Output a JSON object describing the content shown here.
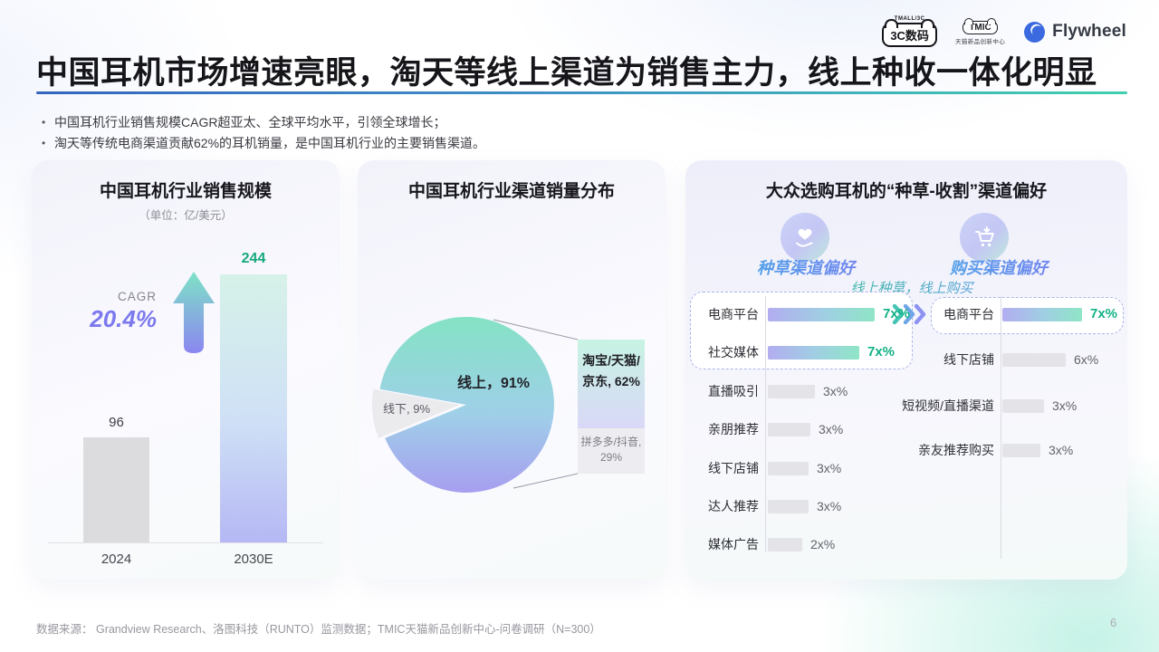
{
  "header": {
    "title": "中国耳机市场增速亮眼，淘天等线上渠道为销售主力，线上种收一体化明显",
    "bullets": [
      "中国耳机行业销售规模CAGR超亚太、全球平均水平，引领全球增长；",
      "淘天等传统电商渠道贡献62%的耳机销量，是中国耳机行业的主要销售渠道。"
    ],
    "logos": {
      "tmall_top": "TMALL/3C",
      "tmall_main": "3C数码",
      "tmic_main": "TMIC",
      "tmic_sub": "天猫新品创新中心",
      "flywheel": "Flywheel"
    }
  },
  "right_panel": {
    "title": "大众选购耳机的“种草-收割”渠道偏好",
    "subtitle": "线上种草，线上购买"
  },
  "footer": {
    "source": "数据来源： Grandview Research、洛图科技（RUNTO）监测数据；TMIC天猫新品创新中心-问卷调研（N=300）",
    "page_number": "6"
  },
  "colors": {
    "accent_teal": "#12b185",
    "accent_purple": "#7c79ee",
    "bar_gradient_purple": "#b2adf0",
    "bar_gradient_teal": "#8fe5c6",
    "divider_blue": "#3565bd",
    "divider_teal": "#41cfae"
  },
  "chart_data": [
    {
      "type": "bar",
      "title": "中国耳机行业销售规模",
      "subtitle": "（单位：亿/美元）",
      "categories": [
        "2024",
        "2030E"
      ],
      "values": [
        96,
        244
      ],
      "value_labels": [
        "96",
        "244"
      ],
      "annotation": {
        "label": "CAGR",
        "value": "20.4%"
      },
      "ylim": [
        0,
        260
      ],
      "grid": false
    },
    {
      "type": "pie",
      "title": "中国耳机行业渠道销量分布",
      "slices": [
        {
          "label": "线上，91%",
          "value": 91
        },
        {
          "label": "线下, 9%",
          "value": 9
        }
      ],
      "breakdown": {
        "segments": [
          {
            "value": 62,
            "label_lines": [
              "淘宝/天猫/",
              "京东, 62%"
            ]
          },
          {
            "value": 29,
            "label_lines": [
              "拼多多/抖音,",
              "29%"
            ]
          }
        ]
      }
    },
    {
      "type": "bar",
      "title": "种草渠道偏好",
      "categories": [
        "电商平台",
        "社交媒体",
        "直播吸引",
        "亲朋推荐",
        "线下店铺",
        "达人推荐",
        "媒体广告"
      ],
      "value_labels": [
        "7x%",
        "7x%",
        "3x%",
        "3x%",
        "3x%",
        "3x%",
        "2x%"
      ],
      "bar_lengths": [
        118,
        101,
        52,
        47,
        45,
        45,
        38
      ],
      "highlight_count": 2
    },
    {
      "type": "bar",
      "title": "购买渠道偏好",
      "categories": [
        "电商平台",
        "线下店铺",
        "短视频/直播渠道",
        "亲友推荐购买"
      ],
      "value_labels": [
        "7x%",
        "6x%",
        "3x%",
        "3x%"
      ],
      "bar_lengths": [
        88,
        70,
        46,
        42
      ],
      "highlight_count": 1
    }
  ]
}
